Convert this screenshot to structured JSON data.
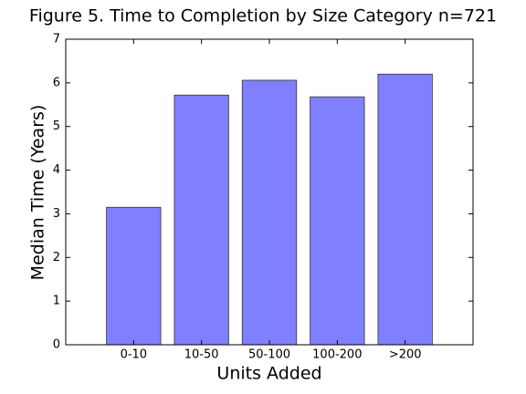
{
  "chart_data": {
    "type": "bar",
    "title": "Figure 5. Time to Completion by Size Category n=721",
    "x_label": "Units Added",
    "y_label": "Median Time (Years)",
    "categories": [
      "0-10",
      "10-50",
      "50-100",
      "100-200",
      ">200"
    ],
    "values": [
      3.15,
      5.72,
      6.06,
      5.68,
      6.2
    ],
    "color": "#8080ff",
    "ylim": [
      0,
      7
    ],
    "yticks": [
      0,
      1,
      2,
      3,
      4,
      5,
      6,
      7
    ]
  }
}
